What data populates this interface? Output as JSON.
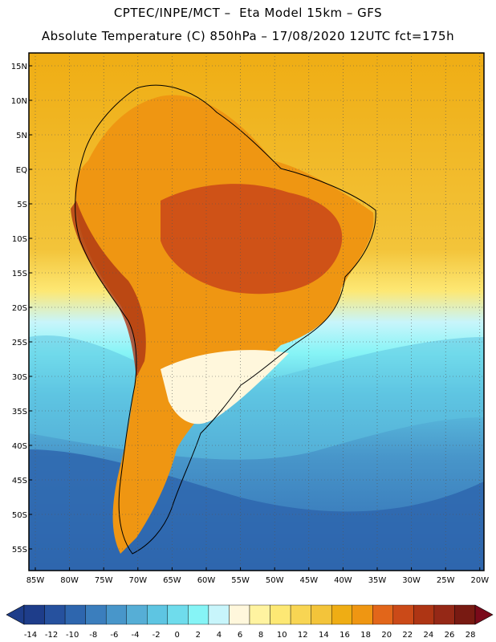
{
  "header": {
    "line1": "CPTEC/INPE/MCT –  Eta Model 15km – GFS",
    "line2": "Absolute Temperature (C) 850hPa – 17/08/2020 12UTC fct=175h"
  },
  "map": {
    "lat_labels": [
      "15N",
      "10N",
      "5N",
      "EQ",
      "5S",
      "10S",
      "15S",
      "20S",
      "25S",
      "30S",
      "35S",
      "40S",
      "45S",
      "50S",
      "55S"
    ],
    "lon_labels": [
      "85W",
      "80W",
      "75W",
      "70W",
      "65W",
      "60W",
      "55W",
      "50W",
      "45W",
      "40W",
      "35W",
      "30W",
      "25W",
      "20W"
    ],
    "grid_style": "dotted",
    "ocean_base_color": "#4a9fd6"
  },
  "colorbar": {
    "tick_labels": [
      "-14",
      "-12",
      "-10",
      "-8",
      "-6",
      "-4",
      "-2",
      "0",
      "2",
      "4",
      "6",
      "8",
      "10",
      "12",
      "14",
      "16",
      "18",
      "20",
      "22",
      "24",
      "26",
      "28"
    ],
    "colors": [
      "#1e3d8a",
      "#26519e",
      "#2e66ae",
      "#3b7ebd",
      "#4896ca",
      "#56aed6",
      "#5ec5e2",
      "#6fdcec",
      "#86f4f6",
      "#c8f5fb",
      "#fff7dc",
      "#fff3a0",
      "#fde874",
      "#f8d553",
      "#f3c43a",
      "#efad14",
      "#ef9612",
      "#e2661a",
      "#cb4a18",
      "#ae3514",
      "#952816",
      "#781a12"
    ],
    "under_color": "#1e3d8a",
    "over_color": "#7a0a1a"
  }
}
